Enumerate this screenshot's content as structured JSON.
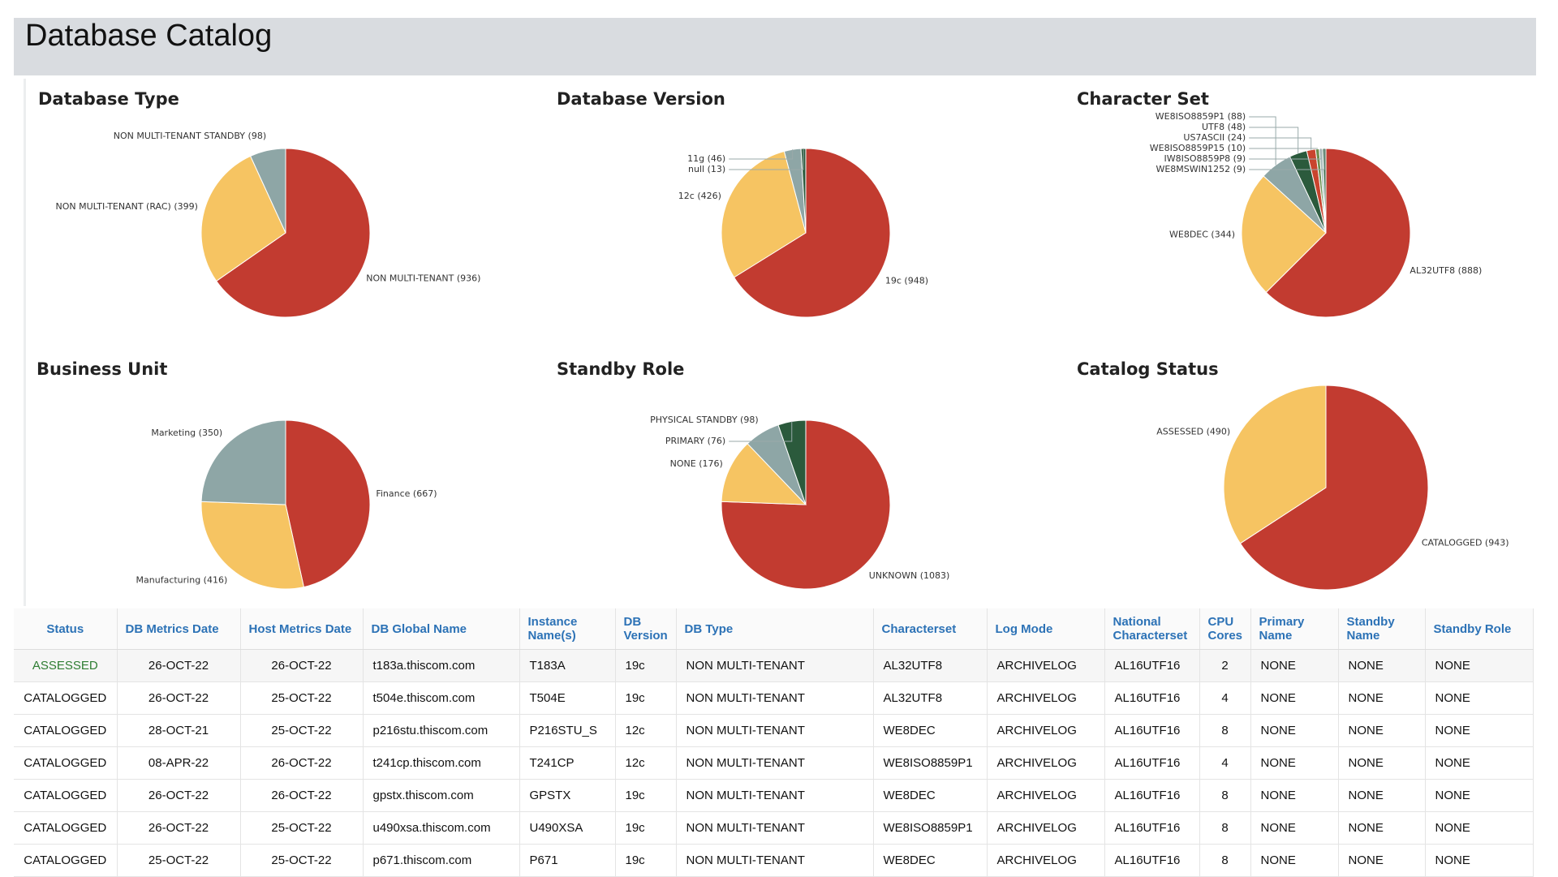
{
  "header": {
    "title": "Database Catalog"
  },
  "chart_data": [
    {
      "type": "pie",
      "title": "Database Type",
      "values": [
        936,
        399,
        98
      ],
      "value_labels": [
        "NON MULTI-TENANT (936)",
        "NON MULTI-TENANT (RAC) (399)",
        "NON MULTI-TENANT STANDBY (98)"
      ],
      "colors": [
        "#c23b30",
        "#f6c462",
        "#8ea6a6"
      ]
    },
    {
      "type": "pie",
      "title": "Database Version",
      "values": [
        948,
        426,
        46,
        13
      ],
      "value_labels": [
        "19c (948)",
        "12c (426)",
        "11g (46)",
        "null (13)"
      ],
      "colors": [
        "#c23b30",
        "#f6c462",
        "#8ea6a6",
        "#2b5a3c"
      ]
    },
    {
      "type": "pie",
      "title": "Character Set",
      "values": [
        888,
        344,
        88,
        48,
        24,
        10,
        9,
        9
      ],
      "value_labels": [
        "AL32UTF8 (888)",
        "WE8DEC (344)",
        "WE8ISO8859P1 (88)",
        "UTF8 (48)",
        "US7ASCII (24)",
        "WE8ISO8859P15 (10)",
        "IW8ISO8859P8 (9)",
        "WE8MSWIN1252 (9)"
      ],
      "colors": [
        "#c23b30",
        "#f6c462",
        "#8ea6a6",
        "#2b5a3c",
        "#c9442e",
        "#6b8e4e",
        "#a9bcbc",
        "#3e6e4e"
      ]
    },
    {
      "type": "pie",
      "title": "Business Unit",
      "values": [
        667,
        416,
        350
      ],
      "value_labels": [
        "Finance (667)",
        "Manufacturing (416)",
        "Marketing (350)"
      ],
      "colors": [
        "#c23b30",
        "#f6c462",
        "#8ea6a6"
      ]
    },
    {
      "type": "pie",
      "title": "Standby Role",
      "values": [
        1083,
        176,
        98,
        76
      ],
      "value_labels": [
        "UNKNOWN (1083)",
        "NONE (176)",
        "PHYSICAL STANDBY (98)",
        "PRIMARY (76)"
      ],
      "colors": [
        "#c23b30",
        "#f6c462",
        "#8ea6a6",
        "#2b5a3c"
      ]
    },
    {
      "type": "pie",
      "title": "Catalog Status",
      "values": [
        943,
        490
      ],
      "value_labels": [
        "CATALOGGED (943)",
        "ASSESSED (490)"
      ],
      "colors": [
        "#c23b30",
        "#f6c462"
      ]
    }
  ],
  "table": {
    "columns": [
      "Status",
      "DB Metrics Date",
      "Host Metrics Date",
      "DB Global Name",
      "Instance Name(s)",
      "DB Version",
      "DB Type",
      "Characterset",
      "Log Mode",
      "National Characterset",
      "CPU Cores",
      "Primary Name",
      "Standby Name",
      "Standby Role"
    ],
    "rows": [
      [
        "ASSESSED",
        "26-OCT-22",
        "26-OCT-22",
        "t183a.thiscom.com",
        "T183A",
        "19c",
        "NON MULTI-TENANT",
        "AL32UTF8",
        "ARCHIVELOG",
        "AL16UTF16",
        2,
        "NONE",
        "NONE",
        "NONE"
      ],
      [
        "CATALOGGED",
        "26-OCT-22",
        "25-OCT-22",
        "t504e.thiscom.com",
        "T504E",
        "19c",
        "NON MULTI-TENANT",
        "AL32UTF8",
        "ARCHIVELOG",
        "AL16UTF16",
        4,
        "NONE",
        "NONE",
        "NONE"
      ],
      [
        "CATALOGGED",
        "28-OCT-21",
        "25-OCT-22",
        "p216stu.thiscom.com",
        "P216STU_S",
        "12c",
        "NON MULTI-TENANT",
        "WE8DEC",
        "ARCHIVELOG",
        "AL16UTF16",
        8,
        "NONE",
        "NONE",
        "NONE"
      ],
      [
        "CATALOGGED",
        "08-APR-22",
        "26-OCT-22",
        "t241cp.thiscom.com",
        "T241CP",
        "12c",
        "NON MULTI-TENANT",
        "WE8ISO8859P1",
        "ARCHIVELOG",
        "AL16UTF16",
        4,
        "NONE",
        "NONE",
        "NONE"
      ],
      [
        "CATALOGGED",
        "26-OCT-22",
        "26-OCT-22",
        "gpstx.thiscom.com",
        "GPSTX",
        "19c",
        "NON MULTI-TENANT",
        "WE8DEC",
        "ARCHIVELOG",
        "AL16UTF16",
        8,
        "NONE",
        "NONE",
        "NONE"
      ],
      [
        "CATALOGGED",
        "26-OCT-22",
        "25-OCT-22",
        "u490xsa.thiscom.com",
        "U490XSA",
        "19c",
        "NON MULTI-TENANT",
        "WE8ISO8859P1",
        "ARCHIVELOG",
        "AL16UTF16",
        8,
        "NONE",
        "NONE",
        "NONE"
      ],
      [
        "CATALOGGED",
        "25-OCT-22",
        "25-OCT-22",
        "p671.thiscom.com",
        "P671",
        "19c",
        "NON MULTI-TENANT",
        "WE8DEC",
        "ARCHIVELOG",
        "AL16UTF16",
        8,
        "NONE",
        "NONE",
        "NONE"
      ]
    ]
  }
}
